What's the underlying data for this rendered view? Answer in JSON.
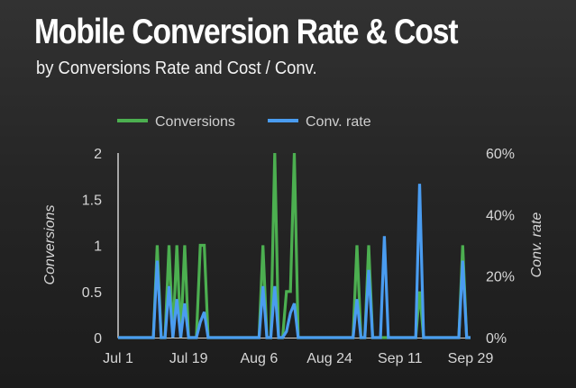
{
  "header": {
    "title": "Mobile Conversion Rate & Cost",
    "subtitle": "by Conversions Rate and Cost / Conv."
  },
  "chart_data": {
    "type": "line",
    "title": "Mobile Conversion Rate & Cost",
    "subtitle": "by Conversions Rate and Cost / Conv.",
    "xlabel": "",
    "ylabel": "Conversions",
    "y2label": "Conv. rate",
    "legend_position": "top",
    "grid": false,
    "x_start_label": "Jul 1",
    "x_ticks": [
      {
        "day": 0,
        "label": "Jul 1"
      },
      {
        "day": 18,
        "label": "Jul 19"
      },
      {
        "day": 36,
        "label": "Aug 6"
      },
      {
        "day": 54,
        "label": "Aug 24"
      },
      {
        "day": 72,
        "label": "Sep 11"
      },
      {
        "day": 90,
        "label": "Sep 29"
      }
    ],
    "xlim": [
      0,
      90
    ],
    "ylim": [
      0,
      2
    ],
    "y_ticks": [
      "0",
      "0.5",
      "1",
      "1.5",
      "2"
    ],
    "y_tick_values": [
      0,
      0.5,
      1,
      1.5,
      2
    ],
    "y2lim": [
      0,
      0.6
    ],
    "y2_ticks": [
      "0%",
      "20%",
      "40%",
      "60%"
    ],
    "y2_tick_values": [
      0,
      0.2,
      0.4,
      0.6
    ],
    "series": [
      {
        "name": "Conversions",
        "axis": "left",
        "color": "#4caf50",
        "points": [
          [
            0,
            0
          ],
          [
            9,
            0
          ],
          [
            10,
            1
          ],
          [
            11,
            0
          ],
          [
            12,
            0
          ],
          [
            13,
            1
          ],
          [
            14,
            0
          ],
          [
            15,
            1
          ],
          [
            16,
            0
          ],
          [
            17,
            1
          ],
          [
            18,
            0
          ],
          [
            20,
            0
          ],
          [
            21,
            1
          ],
          [
            22,
            1
          ],
          [
            23,
            0
          ],
          [
            36,
            0
          ],
          [
            37,
            1
          ],
          [
            38,
            0
          ],
          [
            39,
            0
          ],
          [
            40,
            2
          ],
          [
            41,
            0
          ],
          [
            42,
            0
          ],
          [
            43,
            0.5
          ],
          [
            44,
            0.5
          ],
          [
            45,
            2
          ],
          [
            46,
            0
          ],
          [
            60,
            0
          ],
          [
            61,
            1
          ],
          [
            62,
            0
          ],
          [
            63,
            0
          ],
          [
            64,
            1
          ],
          [
            65,
            0
          ],
          [
            67,
            0
          ],
          [
            68,
            0
          ],
          [
            69,
            0
          ],
          [
            76,
            0
          ],
          [
            77,
            0.5
          ],
          [
            78,
            0
          ],
          [
            87,
            0
          ],
          [
            88,
            1
          ],
          [
            89,
            0
          ],
          [
            90,
            0
          ]
        ]
      },
      {
        "name": "Conv. rate",
        "axis": "right",
        "color": "#4a9cf0",
        "points": [
          [
            0,
            0
          ],
          [
            9,
            0
          ],
          [
            10,
            0.25
          ],
          [
            11,
            0
          ],
          [
            12,
            0
          ],
          [
            13,
            0.167
          ],
          [
            14,
            0
          ],
          [
            15,
            0.125
          ],
          [
            16,
            0
          ],
          [
            17,
            0.111
          ],
          [
            18,
            0
          ],
          [
            20,
            0
          ],
          [
            21,
            0.05
          ],
          [
            22,
            0.083
          ],
          [
            23,
            0
          ],
          [
            36,
            0
          ],
          [
            37,
            0.167
          ],
          [
            38,
            0
          ],
          [
            39,
            0
          ],
          [
            40,
            0.167
          ],
          [
            41,
            0
          ],
          [
            42,
            0
          ],
          [
            43,
            0.02
          ],
          [
            44,
            0.08
          ],
          [
            45,
            0.111
          ],
          [
            46,
            0
          ],
          [
            60,
            0
          ],
          [
            61,
            0.125
          ],
          [
            62,
            0
          ],
          [
            63,
            0
          ],
          [
            64,
            0.22
          ],
          [
            65,
            0
          ],
          [
            67,
            0
          ],
          [
            68,
            0.33
          ],
          [
            69,
            0
          ],
          [
            76,
            0
          ],
          [
            77,
            0.5
          ],
          [
            78,
            0
          ],
          [
            87,
            0
          ],
          [
            88,
            0.25
          ],
          [
            89,
            0
          ],
          [
            90,
            0
          ]
        ]
      }
    ]
  }
}
